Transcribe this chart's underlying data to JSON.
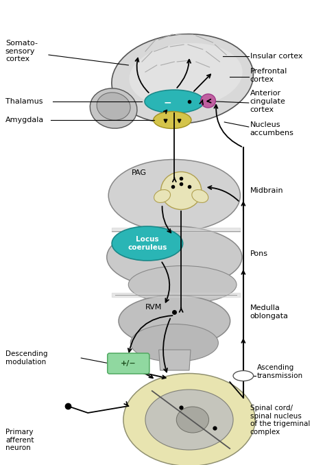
{
  "bg_color": "#ffffff",
  "brain_color": "#d8d8d8",
  "brainstem_color": "#d0d0d0",
  "spinalcord_color": "#e8e4b8",
  "thalamus_color": "#2ab5b5",
  "amygdala_color": "#d4c44a",
  "acc_color": "#c060a0",
  "locus_color": "#2ab5b5",
  "pag_color": "#e8e4b8",
  "descmod_color": "#90d8a0",
  "labels": {
    "somatosensory": "Somato-\nsensory\ncortex",
    "thalamus": "Thalamus",
    "amygdala": "Amygdala",
    "insular": "Insular cortex",
    "prefrontal": "Prefrontal\ncortex",
    "anterior": "Anterior\ncingulate\ncortex",
    "nucleus": "Nucleus\naccumbens",
    "pag": "PAG",
    "locus": "Locus\ncoeruleus",
    "rvm": "RVM",
    "midbrain": "Midbrain",
    "pons": "Pons",
    "medulla": "Medulla\noblongata",
    "descending": "Descending\nmodulation",
    "ascending": "Ascending\ntransmission",
    "primary": "Primary\nafferent\nneuron",
    "spinalcord": "Spinal cord/\nspinal nucleus\nof the trigeminal\ncomplex"
  },
  "figsize": [
    4.74,
    6.78
  ],
  "dpi": 100
}
